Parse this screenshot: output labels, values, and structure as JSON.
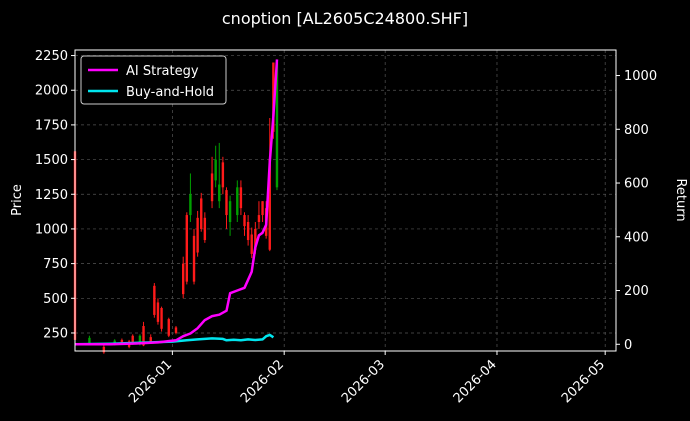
{
  "chart_data": {
    "type": "candlestick+line",
    "title": "cnoption [AL2605C24800.SHF]",
    "ylabel_left": "Price",
    "ylabel_right": "Return",
    "ylim_left": [
      120,
      2290
    ],
    "ylim_right": [
      -25,
      1095
    ],
    "xlim": [
      "2025-12-05",
      "2026-05-04"
    ],
    "left_ticks": [
      250,
      500,
      750,
      1000,
      1250,
      1500,
      1750,
      2000,
      2250
    ],
    "right_ticks": [
      0,
      200,
      400,
      600,
      800,
      1000
    ],
    "x_ticks": [
      "2026-01",
      "2026-02",
      "2026-03",
      "2026-04",
      "2026-05"
    ],
    "grid": true,
    "legend_position": "top-left",
    "colors": {
      "background": "#000000",
      "up": "#00a000",
      "down": "#ff1a1a",
      "ai_strategy": "#ff00ff",
      "buy_and_hold": "#00e5ee"
    },
    "candles": [
      {
        "d": "2025-12-05",
        "o": 1560,
        "c": 200,
        "h": 1560,
        "l": 180
      },
      {
        "d": "2025-12-09",
        "o": 170,
        "c": 215,
        "h": 230,
        "l": 160
      },
      {
        "d": "2025-12-13",
        "o": 150,
        "c": 110,
        "h": 160,
        "l": 100
      },
      {
        "d": "2025-12-16",
        "o": 165,
        "c": 195,
        "h": 205,
        "l": 160
      },
      {
        "d": "2025-12-18",
        "o": 200,
        "c": 175,
        "h": 210,
        "l": 165
      },
      {
        "d": "2025-12-20",
        "o": 190,
        "c": 150,
        "h": 200,
        "l": 140
      },
      {
        "d": "2025-12-21",
        "o": 230,
        "c": 170,
        "h": 240,
        "l": 165
      },
      {
        "d": "2025-12-23",
        "o": 170,
        "c": 230,
        "h": 240,
        "l": 160
      },
      {
        "d": "2025-12-24",
        "o": 300,
        "c": 160,
        "h": 330,
        "l": 155
      },
      {
        "d": "2025-12-26",
        "o": 220,
        "c": 180,
        "h": 240,
        "l": 175
      },
      {
        "d": "2025-12-27",
        "o": 590,
        "c": 380,
        "h": 610,
        "l": 360
      },
      {
        "d": "2025-12-28",
        "o": 470,
        "c": 330,
        "h": 500,
        "l": 310
      },
      {
        "d": "2025-12-29",
        "o": 430,
        "c": 280,
        "h": 440,
        "l": 260
      },
      {
        "d": "2025-12-31",
        "o": 350,
        "c": 230,
        "h": 360,
        "l": 220
      },
      {
        "d": "2026-01-02",
        "o": 290,
        "c": 250,
        "h": 300,
        "l": 240
      },
      {
        "d": "2026-01-04",
        "o": 750,
        "c": 530,
        "h": 800,
        "l": 500
      },
      {
        "d": "2026-01-05",
        "o": 1100,
        "c": 620,
        "h": 1120,
        "l": 600
      },
      {
        "d": "2026-01-06",
        "o": 1100,
        "c": 1250,
        "h": 1400,
        "l": 1050
      },
      {
        "d": "2026-01-07",
        "o": 950,
        "c": 620,
        "h": 1000,
        "l": 600
      },
      {
        "d": "2026-01-08",
        "o": 1080,
        "c": 830,
        "h": 1130,
        "l": 800
      },
      {
        "d": "2026-01-09",
        "o": 1220,
        "c": 1000,
        "h": 1260,
        "l": 980
      },
      {
        "d": "2026-01-10",
        "o": 1080,
        "c": 920,
        "h": 1120,
        "l": 900
      },
      {
        "d": "2026-01-12",
        "o": 1400,
        "c": 1200,
        "h": 1520,
        "l": 1150
      },
      {
        "d": "2026-01-13",
        "o": 1350,
        "c": 1500,
        "h": 1600,
        "l": 1300
      },
      {
        "d": "2026-01-14",
        "o": 1200,
        "c": 1320,
        "h": 1620,
        "l": 1150
      },
      {
        "d": "2026-01-15",
        "o": 1480,
        "c": 1300,
        "h": 1520,
        "l": 1250
      },
      {
        "d": "2026-01-16",
        "o": 1280,
        "c": 1100,
        "h": 1300,
        "l": 1000
      },
      {
        "d": "2026-01-17",
        "o": 1050,
        "c": 1200,
        "h": 1240,
        "l": 950
      },
      {
        "d": "2026-01-19",
        "o": 1100,
        "c": 1300,
        "h": 1350,
        "l": 1050
      },
      {
        "d": "2026-01-20",
        "o": 1300,
        "c": 1150,
        "h": 1350,
        "l": 1100
      },
      {
        "d": "2026-01-21",
        "o": 1100,
        "c": 1020,
        "h": 1120,
        "l": 950
      },
      {
        "d": "2026-01-22",
        "o": 1050,
        "c": 920,
        "h": 1100,
        "l": 880
      },
      {
        "d": "2026-01-23",
        "o": 960,
        "c": 820,
        "h": 1010,
        "l": 790
      },
      {
        "d": "2026-01-24",
        "o": 1000,
        "c": 850,
        "h": 1050,
        "l": 820
      },
      {
        "d": "2026-01-25",
        "o": 1100,
        "c": 1050,
        "h": 1200,
        "l": 1000
      },
      {
        "d": "2026-01-26",
        "o": 1200,
        "c": 1100,
        "h": 1200,
        "l": 1050
      },
      {
        "d": "2026-01-27",
        "o": 1150,
        "c": 950,
        "h": 1200,
        "l": 930
      },
      {
        "d": "2026-01-28",
        "o": 1500,
        "c": 850,
        "h": 1800,
        "l": 840
      },
      {
        "d": "2026-01-29",
        "o": 2200,
        "c": 1700,
        "h": 2200,
        "l": 1650
      },
      {
        "d": "2026-01-30",
        "o": 1300,
        "c": 2200,
        "h": 2210,
        "l": 1280
      }
    ],
    "series": [
      {
        "name": "AI Strategy",
        "axis": "right",
        "points": [
          [
            "2025-12-05",
            0
          ],
          [
            "2025-12-15",
            0
          ],
          [
            "2025-12-22",
            3
          ],
          [
            "2025-12-28",
            7
          ],
          [
            "2026-01-02",
            15
          ],
          [
            "2026-01-04",
            30
          ],
          [
            "2026-01-06",
            40
          ],
          [
            "2026-01-08",
            60
          ],
          [
            "2026-01-10",
            90
          ],
          [
            "2026-01-12",
            105
          ],
          [
            "2026-01-14",
            110
          ],
          [
            "2026-01-16",
            125
          ],
          [
            "2026-01-17",
            190
          ],
          [
            "2026-01-19",
            200
          ],
          [
            "2026-01-21",
            210
          ],
          [
            "2026-01-22",
            240
          ],
          [
            "2026-01-23",
            270
          ],
          [
            "2026-01-24",
            360
          ],
          [
            "2026-01-25",
            405
          ],
          [
            "2026-01-26",
            415
          ],
          [
            "2026-01-27",
            445
          ],
          [
            "2026-01-28",
            680
          ],
          [
            "2026-01-29",
            850
          ],
          [
            "2026-01-30",
            1060
          ]
        ]
      },
      {
        "name": "Buy-and-Hold",
        "axis": "right",
        "points": [
          [
            "2025-12-05",
            0
          ],
          [
            "2025-12-15",
            2
          ],
          [
            "2025-12-22",
            5
          ],
          [
            "2026-01-01",
            10
          ],
          [
            "2026-01-05",
            15
          ],
          [
            "2026-01-08",
            18
          ],
          [
            "2026-01-10",
            20
          ],
          [
            "2026-01-12",
            22
          ],
          [
            "2026-01-15",
            20
          ],
          [
            "2026-01-16",
            15
          ],
          [
            "2026-01-18",
            17
          ],
          [
            "2026-01-20",
            15
          ],
          [
            "2026-01-22",
            18
          ],
          [
            "2026-01-24",
            16
          ],
          [
            "2026-01-26",
            18
          ],
          [
            "2026-01-27",
            30
          ],
          [
            "2026-01-28",
            35
          ],
          [
            "2026-01-29",
            26
          ]
        ]
      }
    ]
  }
}
